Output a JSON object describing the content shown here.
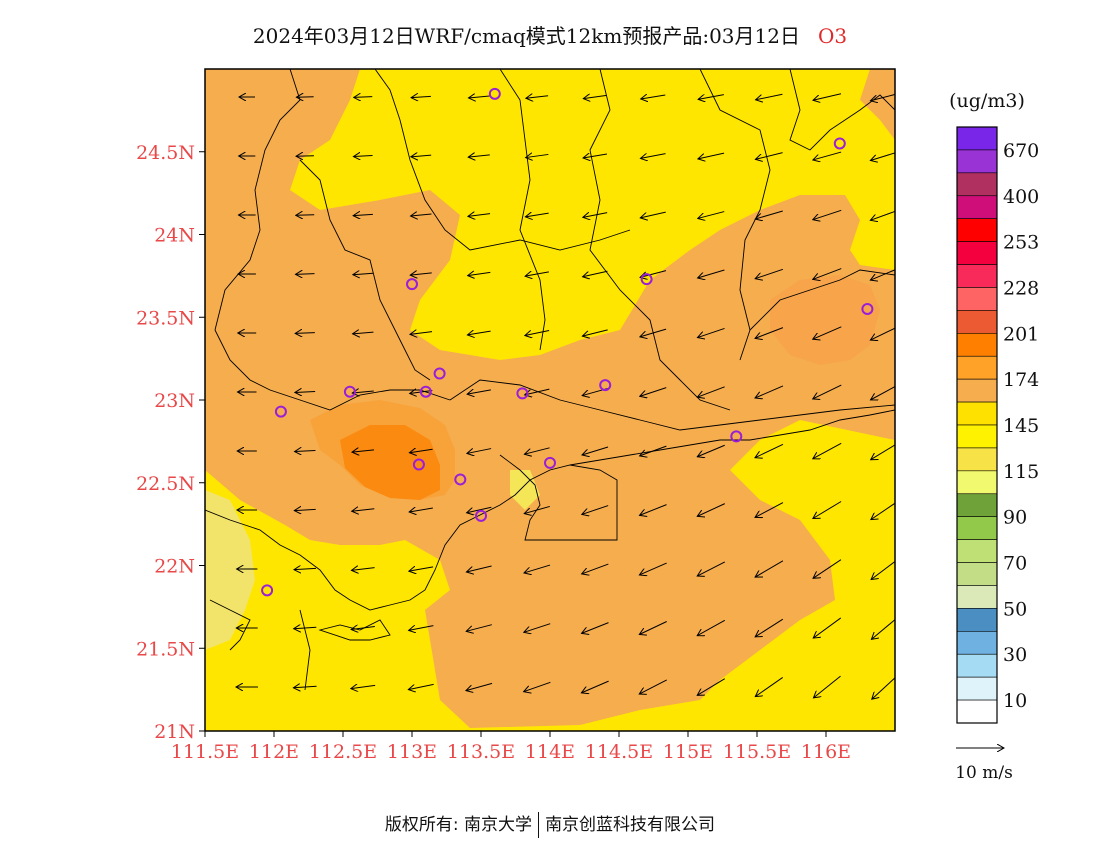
{
  "title": {
    "text": "2024年03月12日WRF/cmaq模式12km预报产品:03月12日",
    "species": "O3"
  },
  "axes": {
    "y_ticks": [
      "21N",
      "21.5N",
      "22N",
      "22.5N",
      "23N",
      "23.5N",
      "24N",
      "24.5N"
    ],
    "x_ticks": [
      "111.5E",
      "112E",
      "112.5E",
      "113E",
      "113.5E",
      "114E",
      "114.5E",
      "115E",
      "115.5E",
      "116E"
    ],
    "lat_range": [
      21,
      25
    ],
    "lon_range": [
      111.5,
      116.5
    ]
  },
  "legend": {
    "unit": "(ug/m3)",
    "colors": [
      "#ffffff",
      "#dff3fb",
      "#a5dcf4",
      "#6fb2e2",
      "#4a8ec2",
      "#dbe9b8",
      "#c3dd86",
      "#bfe074",
      "#92c94a",
      "#6fa238",
      "#f1fa6e",
      "#f7e347",
      "#fff200",
      "#ffe100",
      "#f6ad4e",
      "#ffa227",
      "#ff8000",
      "#ec5a34",
      "#ff6464",
      "#f72a59",
      "#f5003e",
      "#ff0000",
      "#cf0e7a",
      "#b0305f",
      "#9a33d6",
      "#7a26e8"
    ],
    "labels": [
      "10",
      "30",
      "50",
      "70",
      "90",
      "115",
      "145",
      "174",
      "201",
      "228",
      "253",
      "400",
      "670"
    ]
  },
  "wind_reference": {
    "label": "10 m/s"
  },
  "stations": [
    {
      "lon": 113.6,
      "lat": 24.85
    },
    {
      "lon": 116.1,
      "lat": 24.55
    },
    {
      "lon": 113.0,
      "lat": 23.7
    },
    {
      "lon": 114.7,
      "lat": 23.73
    },
    {
      "lon": 116.3,
      "lat": 23.55
    },
    {
      "lon": 112.55,
      "lat": 23.05
    },
    {
      "lon": 112.05,
      "lat": 22.93
    },
    {
      "lon": 113.2,
      "lat": 23.16
    },
    {
      "lon": 113.1,
      "lat": 23.05
    },
    {
      "lon": 113.8,
      "lat": 23.04
    },
    {
      "lon": 114.4,
      "lat": 23.09
    },
    {
      "lon": 115.35,
      "lat": 22.78
    },
    {
      "lon": 113.05,
      "lat": 22.61
    },
    {
      "lon": 113.35,
      "lat": 22.52
    },
    {
      "lon": 114.0,
      "lat": 22.62
    },
    {
      "lon": 113.5,
      "lat": 22.3
    },
    {
      "lon": 111.95,
      "lat": 21.85
    }
  ],
  "footer": {
    "left": "版权所有: 南京大学",
    "right": "南京创蓝科技有限公司"
  }
}
